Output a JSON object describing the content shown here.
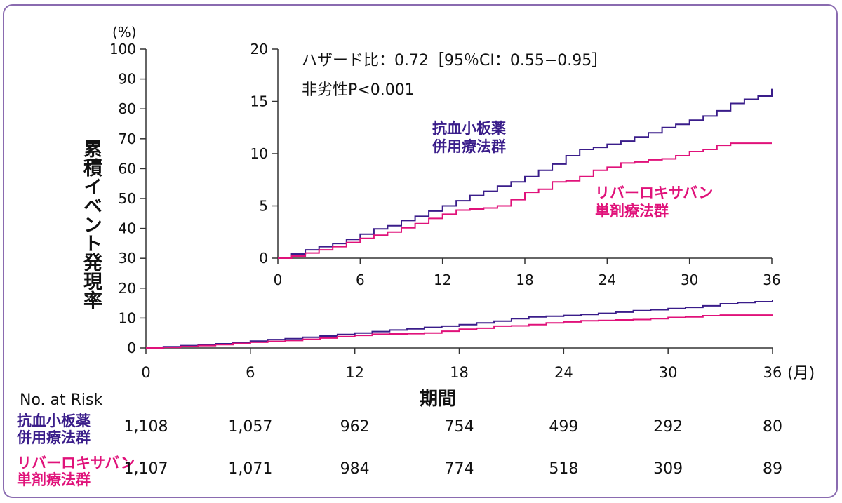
{
  "chart_data": [
    {
      "type": "line",
      "xlabel": "期間",
      "ylabel": "累積イベント発現率",
      "y_unit": "(%)",
      "x_unit": "(月)",
      "xlim": [
        0,
        36
      ],
      "ylim": [
        0,
        100
      ],
      "x_ticks": [
        0,
        6,
        12,
        18,
        24,
        30,
        36
      ],
      "x_tick_labels": [
        "0",
        "6",
        "12",
        "18",
        "24",
        "30",
        "36"
      ],
      "y_ticks": [
        0,
        10,
        20,
        30,
        40,
        50,
        60,
        70,
        80,
        90,
        100
      ],
      "series": [
        {
          "name": "抗血小板薬\n併用療法群",
          "color": "#3a1d8a",
          "x": [
            0,
            1,
            2,
            3,
            4,
            5,
            6,
            7,
            8,
            9,
            10,
            11,
            12,
            13,
            14,
            15,
            16,
            17,
            18,
            19,
            20,
            21,
            22,
            23,
            24,
            25,
            26,
            27,
            28,
            29,
            30,
            31,
            32,
            33,
            34,
            35,
            36
          ],
          "y": [
            0,
            0.4,
            0.8,
            1.1,
            1.4,
            1.8,
            2.3,
            2.8,
            3.1,
            3.6,
            4.0,
            4.5,
            5.0,
            5.5,
            6.0,
            6.4,
            6.9,
            7.3,
            7.8,
            8.4,
            9.0,
            9.8,
            10.4,
            10.6,
            10.9,
            11.2,
            11.6,
            12.0,
            12.5,
            12.8,
            13.2,
            13.6,
            14.1,
            14.8,
            15.2,
            15.5,
            16.2
          ]
        },
        {
          "name": "リバーロキサバン\n単剤療法群",
          "color": "#e0127a",
          "x": [
            0,
            1,
            2,
            3,
            4,
            5,
            6,
            7,
            8,
            9,
            10,
            11,
            12,
            13,
            14,
            15,
            16,
            17,
            18,
            19,
            20,
            21,
            22,
            23,
            24,
            25,
            26,
            27,
            28,
            29,
            30,
            31,
            32,
            33,
            34,
            35,
            36
          ],
          "y": [
            0,
            0.2,
            0.5,
            0.8,
            1.1,
            1.5,
            1.9,
            2.2,
            2.5,
            2.9,
            3.3,
            3.8,
            4.2,
            4.6,
            4.7,
            4.8,
            5.0,
            5.6,
            6.3,
            6.6,
            7.3,
            7.4,
            7.8,
            8.4,
            8.7,
            9.1,
            9.2,
            9.4,
            9.5,
            9.8,
            10.2,
            10.4,
            10.8,
            11.0,
            11.0,
            11.0,
            11.0
          ]
        }
      ],
      "number_at_risk": {
        "header": "No. at Risk",
        "rows": [
          {
            "label": "抗血小板薬\n併用療法群",
            "color": "#3a1d8a",
            "values": [
              "1,108",
              "1,057",
              "962",
              "754",
              "499",
              "292",
              "80"
            ]
          },
          {
            "label": "リバーロキサバン\n単剤療法群",
            "color": "#e0127a",
            "values": [
              "1,107",
              "1,071",
              "984",
              "774",
              "518",
              "309",
              "89"
            ]
          }
        ]
      }
    },
    {
      "type": "line",
      "inset": true,
      "xlim": [
        0,
        36
      ],
      "ylim": [
        0,
        20
      ],
      "x_ticks": [
        0,
        6,
        12,
        18,
        24,
        30,
        36
      ],
      "x_tick_labels": [
        "0",
        "6",
        "12",
        "18",
        "24",
        "30",
        "36"
      ],
      "y_ticks": [
        0,
        5,
        10,
        15,
        20
      ],
      "annotations": [
        "ハザード比：0.72［95％CI：0.55−0.95］",
        "非劣性P<0.001"
      ],
      "series_labels": [
        "抗血小板薬\n併用療法群",
        "リバーロキサバン\n単剤療法群"
      ]
    }
  ]
}
